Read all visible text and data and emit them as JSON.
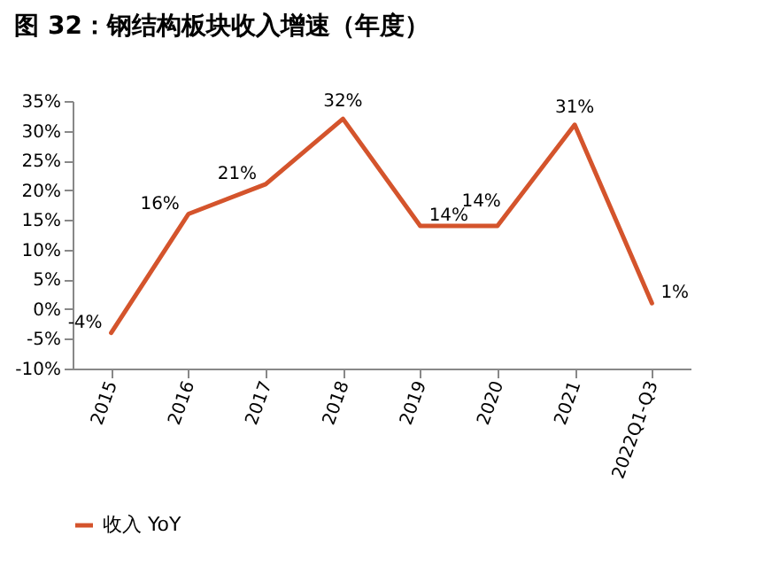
{
  "chart_data": {
    "type": "line",
    "title": "图 32：钢结构板块收入增速（年度）",
    "categories": [
      "2015",
      "2016",
      "2017",
      "2018",
      "2019",
      "2020",
      "2021",
      "2022Q1-Q3"
    ],
    "series": [
      {
        "name": "收入 YoY",
        "color": "#d4542c",
        "values": [
          -4,
          16,
          21,
          32,
          14,
          14,
          31,
          1
        ],
        "value_labels": [
          "-4%",
          "16%",
          "21%",
          "32%",
          "14%",
          "14%",
          "31%",
          "1%"
        ]
      }
    ],
    "ylim": [
      -10,
      35
    ],
    "yticks": [
      {
        "value": -10,
        "label": "-10%"
      },
      {
        "value": -5,
        "label": "-5%"
      },
      {
        "value": 0,
        "label": "0%"
      },
      {
        "value": 5,
        "label": "5%"
      },
      {
        "value": 10,
        "label": "10%"
      },
      {
        "value": 15,
        "label": "15%"
      },
      {
        "value": 20,
        "label": "20%"
      },
      {
        "value": 25,
        "label": "25%"
      },
      {
        "value": 30,
        "label": "30%"
      },
      {
        "value": 35,
        "label": "35%"
      }
    ],
    "grid": false,
    "legend": "bottom",
    "marker": "none",
    "line_style": "solid"
  }
}
